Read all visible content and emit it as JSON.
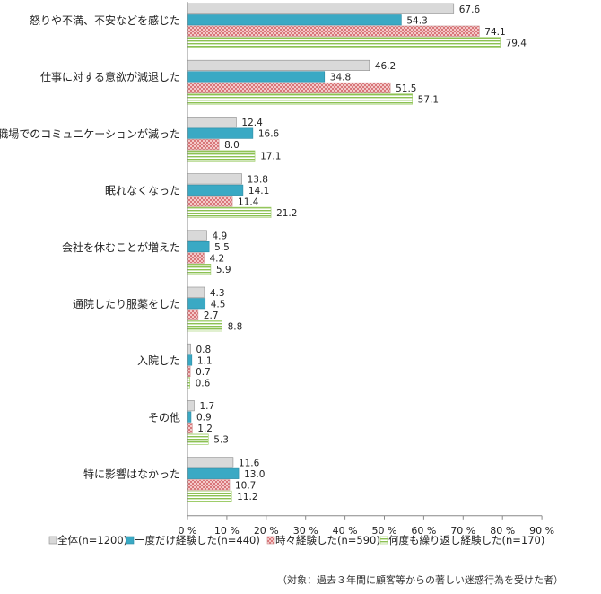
{
  "chart_data": {
    "type": "bar",
    "orientation": "horizontal",
    "categories": [
      "怒りや不満、不安などを感じた",
      "仕事に対する意欲が減退した",
      "職場でのコミュニケーションが減った",
      "眠れなくなった",
      "会社を休むことが増えた",
      "通院したり服薬をした",
      "入院した",
      "その他",
      "特に影響はなかった"
    ],
    "series": [
      {
        "name": "全体(n=1200)",
        "color": "#d9d9d9",
        "pattern": "solid-gray",
        "values": [
          67.6,
          46.2,
          12.4,
          13.8,
          4.9,
          4.3,
          0.8,
          1.7,
          11.6
        ]
      },
      {
        "name": "一度だけ経験した(n=440)",
        "color": "#3aa9c4",
        "pattern": "solid-teal",
        "values": [
          54.3,
          34.8,
          16.6,
          14.1,
          5.5,
          4.5,
          1.1,
          0.9,
          13.0
        ]
      },
      {
        "name": "時々経験した(n=590)",
        "color": "#e8a0a0",
        "pattern": "pink-dots",
        "values": [
          74.1,
          51.5,
          8.0,
          11.4,
          4.2,
          2.7,
          0.7,
          1.2,
          10.7
        ]
      },
      {
        "name": "何度も繰り返し経験した(n=170)",
        "color": "#9ccc65",
        "pattern": "green-stripes",
        "values": [
          79.4,
          57.1,
          17.1,
          21.2,
          5.9,
          8.8,
          0.6,
          5.3,
          11.2
        ]
      }
    ],
    "value_labels": [
      [
        "67.6",
        "46.2",
        "12.4",
        "13.8",
        "4.9",
        "4.3",
        "0.8",
        "1.7",
        "11.6"
      ],
      [
        "54.3",
        "34.8",
        "16.6",
        "14.1",
        "5.5",
        "4.5",
        "1.1",
        "0.9",
        "13.0"
      ],
      [
        "74.1",
        "51.5",
        "8.0",
        "11.4",
        "4.2",
        "2.7",
        "0.7",
        "1.2",
        "10.7"
      ],
      [
        "79.4",
        "57.1",
        "17.1",
        "21.2",
        "5.9",
        "8.8",
        "0.6",
        "5.3",
        "11.2"
      ]
    ],
    "xlim": [
      0,
      90
    ],
    "xticks": [
      0,
      10,
      20,
      30,
      40,
      50,
      60,
      70,
      80,
      90
    ],
    "xtick_labels": [
      "0 %",
      "10 %",
      "20 %",
      "30 %",
      "40 %",
      "50 %",
      "60 %",
      "70 %",
      "80 %",
      "90 %"
    ],
    "legend_position": "bottom",
    "grid": false
  },
  "footnote": "（対象：過去３年間に顧客等からの著しい迷惑行為を受けた者）"
}
